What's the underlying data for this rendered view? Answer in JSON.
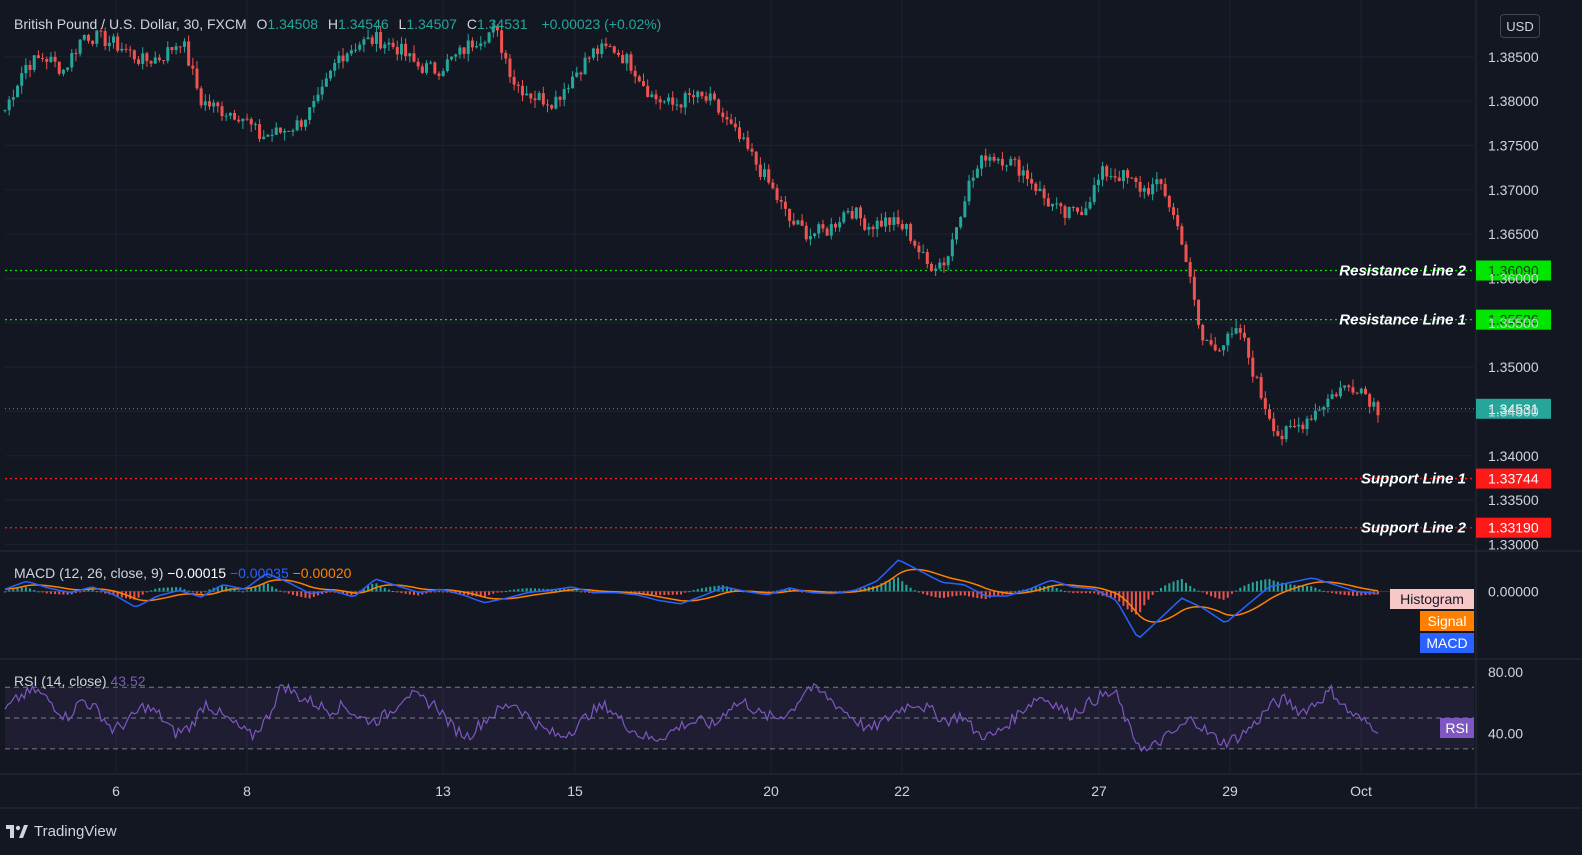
{
  "header": {
    "instrument": "British Pound / U.S. Dollar, 30, FXCM",
    "o_label": "O",
    "o_value": "1.34508",
    "h_label": "H",
    "h_value": "1.34546",
    "l_label": "L",
    "l_value": "1.34507",
    "c_label": "C",
    "c_value": "1.34531",
    "change": "+0.00023 (+0.02%)"
  },
  "currency_button": "USD",
  "brand": "TradingView",
  "colors": {
    "background": "#131722",
    "grid": "#1e2230",
    "up": "#26a69a",
    "down": "#ef5350",
    "resistance": "#00e600",
    "support": "#ff1a1a",
    "macd": "#2962ff",
    "signal": "#ff8000",
    "rsi": "#7e57c2",
    "text": "#d1d4dc"
  },
  "chart_data": [
    {
      "type": "candlestick",
      "title": "British Pound / U.S. Dollar, 30, FXCM",
      "ylim": [
        1.3295,
        1.3905
      ],
      "y_ticks": [
        "1.38500",
        "1.38000",
        "1.37500",
        "1.37000",
        "1.36500",
        "1.36000",
        "1.35500",
        "1.35000",
        "1.34500",
        "1.34000",
        "1.33500",
        "1.33000"
      ],
      "x_ticks": [
        "6",
        "8",
        "13",
        "15",
        "20",
        "22",
        "27",
        "29",
        "Oct"
      ],
      "last_price": "1.34531",
      "close_path": [
        1.379,
        1.384,
        1.385,
        1.3835,
        1.3875,
        1.387,
        1.386,
        1.3845,
        1.385,
        1.387,
        1.38,
        1.379,
        1.3785,
        1.376,
        1.3765,
        1.3775,
        1.38,
        1.385,
        1.3865,
        1.387,
        1.386,
        1.384,
        1.3835,
        1.385,
        1.387,
        1.388,
        1.382,
        1.3805,
        1.38,
        1.383,
        1.3855,
        1.386,
        1.384,
        1.3805,
        1.3795,
        1.3805,
        1.38,
        1.377,
        1.374,
        1.3705,
        1.3665,
        1.365,
        1.3655,
        1.368,
        1.366,
        1.3665,
        1.3655,
        1.3615,
        1.362,
        1.37,
        1.374,
        1.3735,
        1.372,
        1.369,
        1.367,
        1.368,
        1.372,
        1.3715,
        1.37,
        1.3705,
        1.3645,
        1.353,
        1.3525,
        1.354,
        1.347,
        1.342,
        1.3435,
        1.3455,
        1.3475,
        1.348,
        1.3453
      ],
      "horizontal_levels": [
        {
          "name": "Resistance Line 2",
          "value": 1.3609,
          "label": "1.36090",
          "kind": "resistance"
        },
        {
          "name": "Resistance Line 1",
          "value": 1.35536,
          "label": "1.35536",
          "kind": "resistance"
        },
        {
          "name": "Support Line 1",
          "value": 1.33744,
          "label": "1.33744",
          "kind": "support"
        },
        {
          "name": "Support Line 2",
          "value": 1.3319,
          "label": "1.33190",
          "kind": "support"
        }
      ]
    },
    {
      "type": "line",
      "title": "MACD (12, 26, close, 9)",
      "values_text": {
        "hist": "−0.00015",
        "macd": "−0.00035",
        "signal": "−0.00020"
      },
      "ylim": [
        -0.0058,
        0.0034
      ],
      "y_ticks": [
        "0.00000"
      ],
      "legend": [
        "Histogram",
        "Signal",
        "MACD"
      ],
      "macd_path": [
        0.0002,
        0.0009,
        0.0003,
        -0.0001,
        0.0004,
        -0.0003,
        -0.0014,
        -0.0004,
        0.0001,
        -0.0005,
        0.0006,
        0.0002,
        0.0016,
        0.0008,
        -0.0002,
        0.0001,
        -0.0005,
        0.0011,
        0.0005,
        -0.0001,
        0.0002,
        -0.0003,
        -0.001,
        -0.0006,
        -0.0001,
        0.0001,
        0.0004,
        -0.0001,
        -0.0001,
        -0.0003,
        -0.0008,
        -0.0011,
        -0.0004,
        0.0004,
        0.0,
        -0.0003,
        0.0003,
        -0.0001,
        -0.0002,
        0.0001,
        0.0009,
        0.0028,
        0.0018,
        0.0008,
        0.0006,
        -0.0004,
        -0.0004,
        0.0002,
        0.001,
        0.0004,
        0.0002,
        -0.0008,
        -0.0042,
        -0.0024,
        -0.0006,
        -0.0015,
        -0.0028,
        -0.0012,
        0.0004,
        0.0008,
        0.0012,
        0.0006,
        0.0,
        -0.0002
      ]
    },
    {
      "type": "line",
      "title": "RSI (14, close)",
      "value_text": "43.52",
      "ylim": [
        15,
        87
      ],
      "y_ticks": [
        "80.00",
        "40.00"
      ],
      "bands": [
        70,
        50,
        30
      ],
      "legend": [
        "RSI"
      ],
      "rsi_path": [
        55,
        64,
        68,
        60,
        50,
        62,
        55,
        42,
        48,
        58,
        52,
        40,
        44,
        60,
        52,
        45,
        38,
        50,
        72,
        64,
        60,
        55,
        58,
        50,
        48,
        54,
        66,
        62,
        58,
        44,
        38,
        48,
        55,
        60,
        50,
        42,
        38,
        44,
        54,
        58,
        48,
        40,
        36,
        40,
        46,
        48,
        45,
        58,
        60,
        52,
        50,
        55,
        70,
        66,
        58,
        50,
        42,
        48,
        56,
        60,
        55,
        48,
        52,
        40,
        38,
        46,
        56,
        64,
        60,
        52,
        58,
        64,
        66,
        40,
        28,
        36,
        42,
        50,
        40,
        34,
        38,
        46,
        58,
        62,
        54,
        60,
        68,
        55,
        48,
        43.5
      ]
    }
  ]
}
